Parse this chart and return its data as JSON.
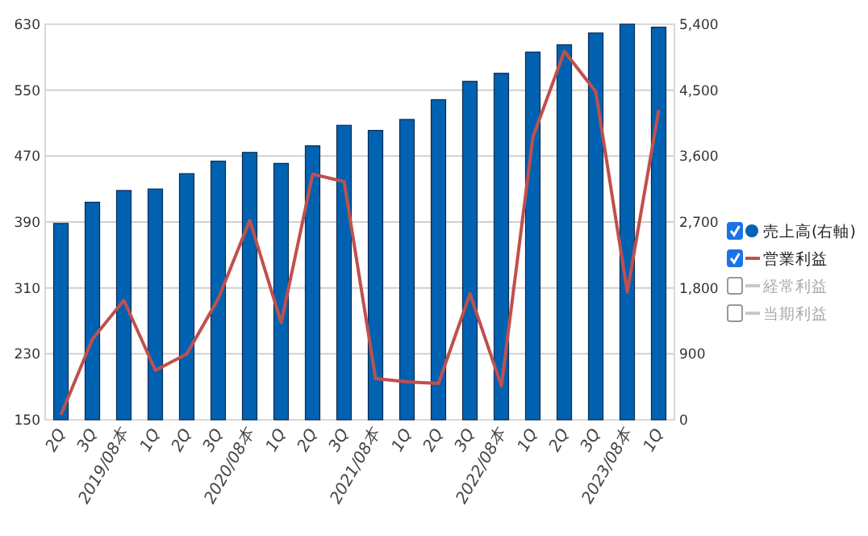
{
  "chart_data": {
    "type": "bar",
    "categories": [
      "2Q",
      "3Q",
      "2019/08本",
      "1Q",
      "2Q",
      "3Q",
      "2020/08本",
      "1Q",
      "2Q",
      "3Q",
      "2021/08本",
      "1Q",
      "2Q",
      "3Q",
      "2022/08本",
      "1Q",
      "2Q",
      "3Q",
      "2023/08本",
      "1Q"
    ],
    "series": [
      {
        "name": "売上高(右軸)",
        "type": "bar",
        "axis": "y2",
        "color": "#0062b1",
        "values": [
          2680,
          2970,
          3130,
          3150,
          3360,
          3530,
          3650,
          3500,
          3740,
          4020,
          3950,
          4100,
          4370,
          4620,
          4730,
          5020,
          5120,
          5280,
          5400,
          5360
        ]
      },
      {
        "name": "営業利益",
        "type": "line",
        "color": "#c0504d",
        "values": [
          156,
          248,
          295,
          210,
          230,
          297,
          392,
          268,
          448,
          439,
          200,
          196,
          194,
          303,
          191,
          493,
          597,
          548,
          305,
          526
        ]
      },
      {
        "name": "経常利益",
        "type": "line",
        "color": "#c8c8c8",
        "values": [
          null,
          null,
          null,
          null,
          null,
          null,
          null,
          null,
          null,
          null,
          null,
          null,
          null,
          null,
          null,
          null,
          null,
          null,
          null,
          null
        ]
      },
      {
        "name": "当期利益",
        "type": "line",
        "color": "#c8c8c8",
        "values": [
          null,
          null,
          null,
          null,
          null,
          null,
          null,
          null,
          null,
          null,
          null,
          null,
          null,
          null,
          null,
          null,
          null,
          null,
          null,
          null
        ]
      }
    ],
    "ylim": [
      150,
      630
    ],
    "yticks": [
      150,
      230,
      310,
      390,
      470,
      550,
      630
    ],
    "y2lim": [
      0,
      5400
    ],
    "y2ticks": [
      0,
      {
        "value": 900,
        "label": "900"
      },
      {
        "value": 1800,
        "label": "1,800"
      },
      {
        "value": 2700,
        "label": "2,700"
      },
      {
        "value": 3600,
        "label": "3,600"
      },
      {
        "value": 4500,
        "label": "4,500"
      },
      {
        "value": 5400,
        "label": "5,400"
      }
    ],
    "grid": "y",
    "legend": "right"
  }
}
